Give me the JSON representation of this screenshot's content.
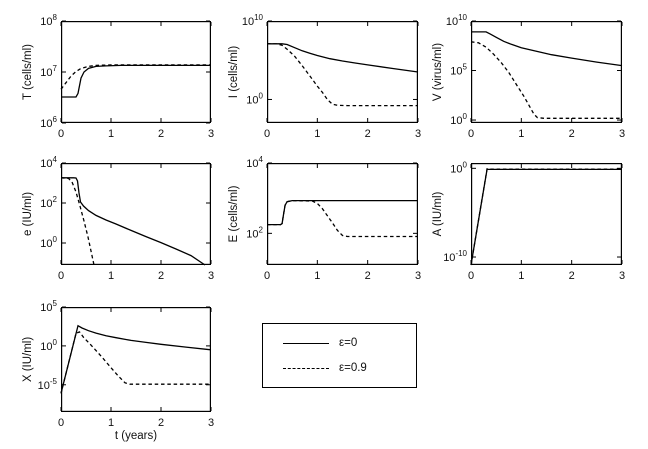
{
  "figure": {
    "background": "#ffffff",
    "line_color": "#000000",
    "text_color": "#111111"
  },
  "legend": {
    "position": "bottom-center",
    "entries": [
      {
        "label": "ε=0",
        "style": "solid"
      },
      {
        "label": "ε=0.9",
        "style": "dashed"
      }
    ]
  },
  "chart_data": [
    {
      "id": "T",
      "type": "line",
      "title": "",
      "ylabel": "T (cells/ml)",
      "xlabel": "",
      "xlim": [
        0,
        3
      ],
      "x_ticks": [
        0,
        1,
        2,
        3
      ],
      "y_scale": "log10",
      "y_tick_exponents": [
        6,
        7,
        8
      ],
      "ylim_exponents": [
        6,
        8
      ],
      "grid": false,
      "series": [
        {
          "name": "ε=0",
          "style": "solid",
          "points": [
            [
              0,
              6.51
            ],
            [
              0.2,
              6.51
            ],
            [
              0.3,
              6.51
            ],
            [
              0.34,
              6.58
            ],
            [
              0.4,
              6.88
            ],
            [
              0.46,
              7.0
            ],
            [
              0.55,
              7.07
            ],
            [
              0.7,
              7.11
            ],
            [
              0.9,
              7.12
            ],
            [
              1.2,
              7.13
            ],
            [
              2,
              7.13
            ],
            [
              3,
              7.13
            ]
          ]
        },
        {
          "name": "ε=0.9",
          "style": "dashed",
          "points": [
            [
              0,
              6.66
            ],
            [
              0.1,
              6.79
            ],
            [
              0.2,
              6.92
            ],
            [
              0.3,
              7.01
            ],
            [
              0.4,
              7.07
            ],
            [
              0.55,
              7.11
            ],
            [
              0.7,
              7.13
            ],
            [
              1,
              7.14
            ],
            [
              1.5,
              7.14
            ],
            [
              2,
              7.14
            ],
            [
              3,
              7.14
            ]
          ]
        }
      ]
    },
    {
      "id": "I",
      "type": "line",
      "title": "",
      "ylabel": "I (cells/ml)",
      "xlabel": "",
      "xlim": [
        0,
        3
      ],
      "x_ticks": [
        0,
        1,
        2,
        3
      ],
      "y_scale": "log10",
      "y_tick_exponents": [
        0,
        10
      ],
      "ylim_exponents": [
        -3,
        10
      ],
      "grid": false,
      "series": [
        {
          "name": "ε=0",
          "style": "solid",
          "points": [
            [
              0,
              7.1
            ],
            [
              0.3,
              7.1
            ],
            [
              0.4,
              7.0
            ],
            [
              0.55,
              6.6
            ],
            [
              0.7,
              6.2
            ],
            [
              0.85,
              5.9
            ],
            [
              1,
              5.6
            ],
            [
              1.25,
              5.2
            ],
            [
              1.5,
              4.9
            ],
            [
              1.75,
              4.65
            ],
            [
              2,
              4.4
            ],
            [
              2.5,
              3.95
            ],
            [
              3,
              3.5
            ]
          ]
        },
        {
          "name": "ε=0.9",
          "style": "dashed",
          "points": [
            [
              0,
              7.1
            ],
            [
              0.2,
              7.08
            ],
            [
              0.3,
              6.9
            ],
            [
              0.4,
              6.4
            ],
            [
              0.55,
              5.5
            ],
            [
              0.7,
              4.3
            ],
            [
              0.85,
              3.0
            ],
            [
              1.0,
              1.7
            ],
            [
              1.1,
              0.9
            ],
            [
              1.2,
              0.0
            ],
            [
              1.3,
              -0.6
            ],
            [
              1.4,
              -0.75
            ],
            [
              1.6,
              -0.78
            ],
            [
              2,
              -0.78
            ],
            [
              2.5,
              -0.78
            ],
            [
              3,
              -0.78
            ]
          ]
        }
      ]
    },
    {
      "id": "V",
      "type": "line",
      "title": "",
      "ylabel": "V (virus/ml)",
      "xlabel": "",
      "xlim": [
        0,
        3
      ],
      "x_ticks": [
        0,
        1,
        2,
        3
      ],
      "y_scale": "log10",
      "y_tick_exponents": [
        0,
        5,
        10
      ],
      "ylim_exponents": [
        -0.3,
        10
      ],
      "grid": false,
      "series": [
        {
          "name": "ε=0",
          "style": "solid",
          "points": [
            [
              0,
              8.9
            ],
            [
              0.3,
              8.9
            ],
            [
              0.38,
              8.7
            ],
            [
              0.5,
              8.35
            ],
            [
              0.65,
              7.95
            ],
            [
              0.8,
              7.65
            ],
            [
              1,
              7.3
            ],
            [
              1.3,
              6.95
            ],
            [
              1.6,
              6.6
            ],
            [
              2,
              6.25
            ],
            [
              2.5,
              5.85
            ],
            [
              3,
              5.5
            ]
          ]
        },
        {
          "name": "ε=0.9",
          "style": "dashed",
          "points": [
            [
              0,
              7.9
            ],
            [
              0.15,
              7.8
            ],
            [
              0.3,
              7.35
            ],
            [
              0.45,
              6.65
            ],
            [
              0.6,
              5.8
            ],
            [
              0.75,
              4.8
            ],
            [
              0.9,
              3.6
            ],
            [
              1.05,
              2.4
            ],
            [
              1.15,
              1.5
            ],
            [
              1.25,
              0.6
            ],
            [
              1.32,
              0.25
            ],
            [
              1.45,
              0.17
            ],
            [
              2,
              0.17
            ],
            [
              2.5,
              0.17
            ],
            [
              3,
              0.17
            ]
          ]
        }
      ]
    },
    {
      "id": "e",
      "type": "line",
      "title": "",
      "ylabel": "e (IU/ml)",
      "xlabel": "",
      "xlim": [
        0,
        3
      ],
      "x_ticks": [
        0,
        1,
        2,
        3
      ],
      "y_scale": "log10",
      "y_tick_exponents": [
        0,
        2,
        4
      ],
      "ylim_exponents": [
        -1.1,
        4
      ],
      "grid": false,
      "series": [
        {
          "name": "ε=0",
          "style": "solid",
          "points": [
            [
              0,
              3.26
            ],
            [
              0.25,
              3.26
            ],
            [
              0.3,
              3.25
            ],
            [
              0.33,
              3.1
            ],
            [
              0.36,
              2.5
            ],
            [
              0.39,
              2.05
            ],
            [
              0.45,
              1.85
            ],
            [
              0.55,
              1.62
            ],
            [
              0.7,
              1.38
            ],
            [
              0.9,
              1.15
            ],
            [
              1.1,
              0.95
            ],
            [
              1.4,
              0.63
            ],
            [
              1.7,
              0.32
            ],
            [
              2,
              0.02
            ],
            [
              2.3,
              -0.3
            ],
            [
              2.6,
              -0.63
            ],
            [
              2.88,
              -1.1
            ]
          ]
        },
        {
          "name": "ε=0.9",
          "style": "dashed",
          "points": [
            [
              0,
              3.26
            ],
            [
              0.15,
              3.23
            ],
            [
              0.22,
              3.05
            ],
            [
              0.3,
              2.55
            ],
            [
              0.38,
              1.85
            ],
            [
              0.46,
              1.1
            ],
            [
              0.54,
              0.3
            ],
            [
              0.6,
              -0.4
            ],
            [
              0.66,
              -1.1
            ]
          ]
        }
      ]
    },
    {
      "id": "E",
      "type": "line",
      "title": "",
      "ylabel": "E (cells/ml)",
      "xlabel": "",
      "xlim": [
        0,
        3
      ],
      "x_ticks": [
        0,
        1,
        2,
        3
      ],
      "y_scale": "log10",
      "y_tick_exponents": [
        2,
        4
      ],
      "ylim_exponents": [
        1.1,
        4
      ],
      "grid": false,
      "series": [
        {
          "name": "ε=0",
          "style": "solid",
          "points": [
            [
              0,
              2.25
            ],
            [
              0.27,
              2.25
            ],
            [
              0.3,
              2.28
            ],
            [
              0.33,
              2.55
            ],
            [
              0.36,
              2.8
            ],
            [
              0.4,
              2.9
            ],
            [
              0.5,
              2.93
            ],
            [
              1,
              2.93
            ],
            [
              1.5,
              2.93
            ],
            [
              2,
              2.93
            ],
            [
              3,
              2.93
            ]
          ]
        },
        {
          "name": "ε=0.9",
          "style": "dashed",
          "points": [
            [
              0,
              2.25
            ],
            [
              0.27,
              2.25
            ],
            [
              0.3,
              2.28
            ],
            [
              0.33,
              2.55
            ],
            [
              0.36,
              2.8
            ],
            [
              0.4,
              2.9
            ],
            [
              0.5,
              2.93
            ],
            [
              0.9,
              2.92
            ],
            [
              1.0,
              2.85
            ],
            [
              1.1,
              2.7
            ],
            [
              1.2,
              2.5
            ],
            [
              1.3,
              2.3
            ],
            [
              1.4,
              2.08
            ],
            [
              1.5,
              1.94
            ],
            [
              1.6,
              1.91
            ],
            [
              2,
              1.91
            ],
            [
              2.5,
              1.91
            ],
            [
              3,
              1.91
            ]
          ]
        }
      ]
    },
    {
      "id": "A",
      "type": "line",
      "title": "",
      "ylabel": "A (IU/ml)",
      "xlabel": "",
      "xlim": [
        0,
        3
      ],
      "x_ticks": [
        0,
        1,
        2,
        3
      ],
      "y_scale": "log10",
      "y_tick_exponents": [
        -10,
        0
      ],
      "ylim_exponents": [
        -10.9,
        0.6
      ],
      "grid": false,
      "series": [
        {
          "name": "ε=0",
          "style": "solid",
          "points": [
            [
              0,
              -10.9
            ],
            [
              0.32,
              -0.1
            ],
            [
              0.34,
              -0.12
            ],
            [
              1,
              -0.12
            ],
            [
              2,
              -0.12
            ],
            [
              3,
              -0.12
            ]
          ]
        },
        {
          "name": "ε=0.9",
          "style": "dashed",
          "points": [
            [
              0,
              -10.9
            ],
            [
              0.32,
              -0.05
            ],
            [
              0.36,
              -0.1
            ],
            [
              1,
              -0.1
            ],
            [
              2,
              -0.1
            ],
            [
              3,
              -0.1
            ]
          ]
        }
      ]
    },
    {
      "id": "X",
      "type": "line",
      "title": "",
      "ylabel": "X (IU/ml)",
      "xlabel": "t (years)",
      "xlim": [
        0,
        3
      ],
      "x_ticks": [
        0,
        1,
        2,
        3
      ],
      "y_scale": "log10",
      "y_tick_exponents": [
        -5,
        0,
        5
      ],
      "ylim_exponents": [
        -8.5,
        5
      ],
      "grid": false,
      "series": [
        {
          "name": "ε=0",
          "style": "solid",
          "points": [
            [
              0,
              -6.1
            ],
            [
              0.34,
              2.6
            ],
            [
              0.42,
              2.3
            ],
            [
              0.55,
              1.95
            ],
            [
              0.7,
              1.65
            ],
            [
              0.9,
              1.3
            ],
            [
              1.1,
              1.05
            ],
            [
              1.4,
              0.7
            ],
            [
              1.7,
              0.45
            ],
            [
              2,
              0.2
            ],
            [
              2.5,
              -0.15
            ],
            [
              3,
              -0.5
            ]
          ]
        },
        {
          "name": "ε=0.9",
          "style": "dashed",
          "points": [
            [
              0,
              -6.1
            ],
            [
              0.3,
              1.6
            ],
            [
              0.37,
              1.8
            ],
            [
              0.45,
              1.1
            ],
            [
              0.6,
              0.1
            ],
            [
              0.8,
              -1.3
            ],
            [
              1.0,
              -2.8
            ],
            [
              1.15,
              -3.9
            ],
            [
              1.28,
              -4.75
            ],
            [
              1.38,
              -4.92
            ],
            [
              1.6,
              -4.92
            ],
            [
              2,
              -4.92
            ],
            [
              2.5,
              -4.92
            ],
            [
              3,
              -4.92
            ]
          ]
        }
      ]
    }
  ]
}
